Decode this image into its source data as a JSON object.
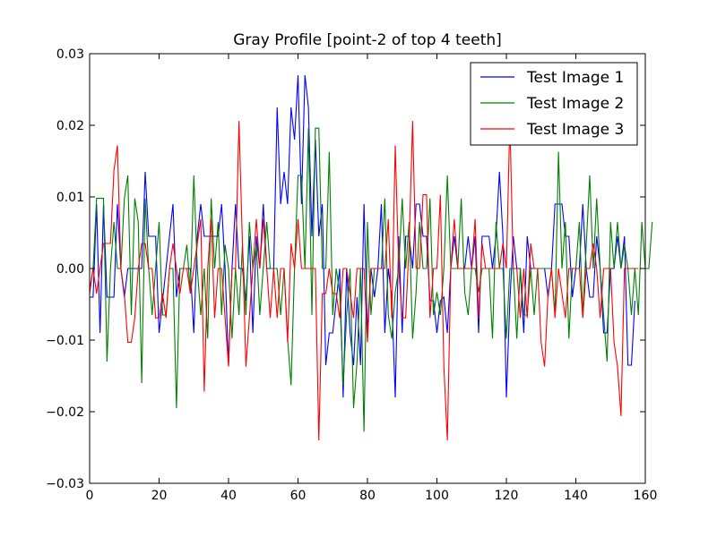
{
  "chart_data": {
    "type": "line",
    "title": "Gray Profile [point-2 of top 4 teeth]",
    "xlabel": "",
    "ylabel": "",
    "xlim": [
      0,
      160
    ],
    "ylim": [
      -0.03,
      0.03
    ],
    "x_ticks": [
      0,
      20,
      40,
      60,
      80,
      100,
      120,
      140,
      160
    ],
    "x_tick_labels": [
      "0",
      "20",
      "40",
      "60",
      "80",
      "100",
      "120",
      "140",
      "160"
    ],
    "y_ticks": [
      -0.03,
      -0.02,
      -0.01,
      0.0,
      0.01,
      0.02,
      0.03
    ],
    "y_tick_labels": [
      "−0.03",
      "−0.02",
      "−0.01",
      "0.00",
      "0.01",
      "0.02",
      "0.03"
    ],
    "grid": false,
    "legend_position": "top-right",
    "series": [
      {
        "name": "Test Image 1",
        "color": "#0000ff",
        "values": [
          -0.004,
          -0.004,
          0.009,
          -0.009,
          0.009,
          -0.004,
          -0.004,
          -0.004,
          0.009,
          0.0,
          -0.004,
          0.0,
          0.0,
          0.0,
          0.0,
          0.0,
          0.0135,
          0.0045,
          0.0045,
          0.0045,
          -0.009,
          -0.0045,
          0.0,
          0.0045,
          0.009,
          -0.004,
          0.0,
          0.0,
          0.0,
          0.0,
          -0.009,
          0.0045,
          0.009,
          0.0045,
          0.0045,
          0.0045,
          0.0045,
          0.0045,
          0.009,
          0.0,
          -0.0135,
          0.0,
          0.009,
          0.0,
          0.0,
          -0.0045,
          0.0045,
          -0.009,
          0.0045,
          0.0,
          0.009,
          0.0,
          0.0,
          0.0,
          0.0225,
          0.009,
          0.0135,
          0.009,
          0.0225,
          0.018,
          0.027,
          0.009,
          0.027,
          0.0225,
          0.0045,
          0.018,
          0.0045,
          0.009,
          -0.0135,
          -0.009,
          -0.009,
          -0.0045,
          0.0,
          -0.018,
          0.0,
          -0.009,
          -0.0135,
          -0.004,
          -0.0135,
          0.009,
          -0.009,
          0.0,
          -0.004,
          0.0,
          0.009,
          -0.009,
          0.0,
          -0.004,
          -0.018,
          0.0045,
          -0.009,
          0.0045,
          0.0045,
          0.0,
          0.009,
          0.009,
          0.0045,
          0.0045,
          -0.0045,
          -0.0045,
          -0.009,
          -0.0045,
          -0.004,
          -0.009,
          0.0,
          0.0045,
          0.0,
          0.0,
          0.0,
          0.0045,
          0.0,
          0.0045,
          -0.009,
          0.0045,
          0.0045,
          0.0045,
          0.0,
          0.0045,
          0.0135,
          0.0045,
          -0.018,
          -0.0045,
          0.0045,
          0.0,
          0.0,
          -0.009,
          0.0045,
          0.0,
          0.0,
          0.0,
          0.0,
          0.0,
          -0.004,
          0.0,
          0.009,
          0.009,
          0.009,
          0.0045,
          0.0045,
          -0.004,
          0.0,
          0.0,
          0.009,
          0.0,
          -0.004,
          -0.004,
          0.0045,
          0.0,
          -0.009,
          -0.009,
          0.0,
          0.0,
          0.0045,
          0.0,
          0.0045,
          -0.0135,
          -0.0135,
          -0.0045
        ]
      },
      {
        "name": "Test Image 2",
        "color": "#008000",
        "values": [
          -0.003,
          0.0,
          0.0098,
          0.0098,
          0.0098,
          -0.013,
          0.0,
          0.0065,
          0.0,
          0.0,
          0.0098,
          0.013,
          -0.0065,
          0.0098,
          0.0065,
          -0.016,
          0.0098,
          0.0,
          -0.0065,
          0.0,
          0.0065,
          -0.0065,
          -0.0065,
          0.0,
          0.0,
          -0.0195,
          0.0,
          0.0,
          0.0033,
          -0.0033,
          0.013,
          0.0,
          -0.0065,
          0.0,
          -0.0098,
          0.0098,
          0.0,
          0.0065,
          -0.0065,
          0.0033,
          0.0,
          -0.0098,
          0.0,
          -0.0065,
          0.0033,
          -0.0065,
          0.0065,
          0.0,
          0.0033,
          -0.0065,
          0.0,
          0.0065,
          0.0,
          0.0,
          0.0,
          -0.0065,
          0.0,
          -0.0098,
          -0.0163,
          0.0,
          0.013,
          0.013,
          0.0,
          0.0196,
          -0.0065,
          0.0196,
          0.0196,
          0.0,
          0.0,
          0.0163,
          -0.0065,
          0.0,
          -0.0033,
          -0.0163,
          -0.0065,
          0.0,
          -0.0195,
          -0.013,
          0.0,
          -0.0228,
          0.0065,
          -0.0065,
          0.0,
          0.0,
          0.0,
          0.0098,
          -0.0065,
          -0.0098,
          -0.0033,
          0.0,
          0.0098,
          0.0,
          0.0065,
          -0.0098,
          -0.0033,
          0.0065,
          0.0,
          0.0,
          0.0098,
          -0.0065,
          -0.0033,
          -0.0065,
          0.0,
          0.013,
          0.0,
          0.0,
          0.0,
          0.0098,
          -0.0033,
          -0.0065,
          0.0,
          0.0,
          -0.0033,
          0.0,
          0.0,
          0.0,
          -0.0098,
          0.0065,
          0.0,
          0.0,
          -0.0098,
          0.0,
          0.0,
          -0.0098,
          0.0,
          -0.0065,
          -0.0065,
          0.0,
          -0.0065,
          0.0,
          0.0,
          0.0,
          0.0,
          0.0,
          -0.0065,
          0.0163,
          0.0,
          0.0065,
          -0.0098,
          0.0,
          0.0,
          0.0065,
          -0.0065,
          0.0033,
          0.013,
          0.0,
          0.0098,
          0.0,
          -0.0065,
          -0.013,
          0.0065,
          0.0,
          0.0065,
          0.0,
          0.0033,
          0.0,
          -0.0065,
          0.0,
          -0.0065,
          0.0065,
          0.0,
          0.0,
          0.0065
        ]
      },
      {
        "name": "Test Image 3",
        "color": "#ff0000",
        "values": [
          -0.0035,
          0.0,
          -0.0035,
          0.0,
          0.0035,
          0.0035,
          0.0035,
          0.0137,
          0.0172,
          0.0,
          -0.0035,
          -0.0103,
          -0.0103,
          -0.0069,
          0.0,
          0.0035,
          0.0035,
          0.0,
          0.0,
          -0.0069,
          -0.0069,
          -0.0035,
          -0.0069,
          0.0,
          0.0035,
          0.0,
          -0.0035,
          0.0,
          0.0,
          -0.0035,
          0.0,
          0.0035,
          0.0069,
          -0.0172,
          0.0,
          0.0069,
          -0.0069,
          0.0,
          0.0,
          -0.0069,
          -0.0137,
          0.0,
          0.0,
          0.0206,
          0.0035,
          -0.0137,
          -0.0069,
          0.0,
          0.0069,
          0.0,
          0.0069,
          0.0,
          -0.0069,
          0.0,
          -0.0069,
          0.0,
          0.0,
          -0.0103,
          0.0035,
          0.0,
          0.0069,
          0.0,
          0.0,
          0.0,
          0.0,
          0.0,
          -0.024,
          -0.0035,
          -0.0035,
          0.0,
          -0.0035,
          -0.0035,
          -0.0069,
          0.0,
          0.0,
          -0.0035,
          -0.0069,
          0.0,
          0.0,
          0.0,
          -0.0103,
          0.0,
          0.0,
          0.0,
          0.0,
          0.0,
          0.0069,
          -0.0069,
          0.0172,
          0.0,
          -0.0069,
          -0.0069,
          0.0035,
          0.0206,
          0.0,
          0.0,
          0.0103,
          0.0103,
          -0.0069,
          0.0,
          0.0,
          0.0103,
          -0.0137,
          -0.024,
          0.0,
          0.0069,
          0.0,
          0.0,
          0.0,
          0.0,
          0.0,
          0.0069,
          -0.0069,
          0.0035,
          0.0,
          0.0,
          0.0,
          0.0,
          0.0,
          0.0035,
          0.0,
          0.0206,
          0.0,
          0.0,
          -0.0069,
          0.0,
          -0.0069,
          0.0035,
          0.0,
          0.0,
          -0.0103,
          -0.0137,
          -0.0035,
          0.0,
          -0.0069,
          0.0,
          -0.0035,
          -0.0069,
          0.0,
          0.0,
          0.0,
          0.0,
          -0.0069,
          0.0,
          0.0,
          0.0035,
          0.0,
          -0.0069,
          0.0,
          0.0,
          0.0,
          -0.0103,
          -0.0137,
          -0.0206,
          0.0,
          0.0,
          0.0,
          0.0,
          0.0
        ]
      }
    ]
  }
}
